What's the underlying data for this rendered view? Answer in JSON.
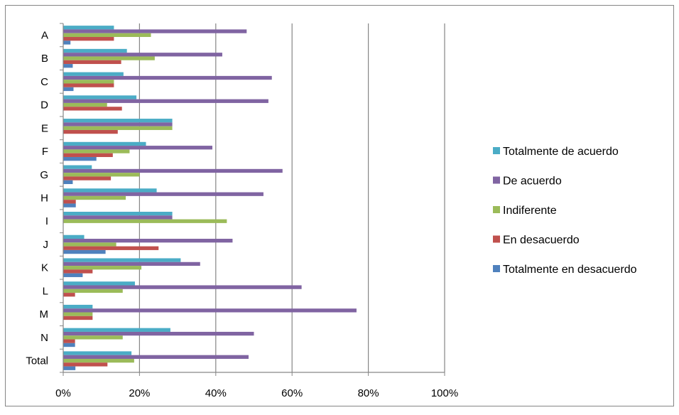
{
  "chart_data": {
    "type": "bar",
    "orientation": "horizontal",
    "categories": [
      "A",
      "B",
      "C",
      "D",
      "E",
      "F",
      "G",
      "H",
      "I",
      "J",
      "K",
      "L",
      "M",
      "N",
      "Total"
    ],
    "x_ticks": [
      "0%",
      "20%",
      "40%",
      "60%",
      "80%",
      "100%"
    ],
    "xlim": [
      0,
      100
    ],
    "grid": "vertical",
    "legend_position": "right",
    "series": [
      {
        "name": "Totalmente de acuerdo",
        "color": "#4BACC6",
        "values": [
          13.3,
          16.7,
          15.8,
          19.2,
          28.6,
          21.7,
          7.5,
          24.5,
          28.6,
          5.5,
          30.8,
          18.8,
          7.7,
          28.1,
          17.9
        ]
      },
      {
        "name": "De acuerdo",
        "color": "#8064A2",
        "values": [
          48.1,
          41.7,
          54.7,
          53.8,
          28.6,
          39.1,
          57.5,
          52.5,
          28.6,
          44.4,
          35.9,
          62.5,
          76.9,
          50.0,
          48.6
        ]
      },
      {
        "name": "Indiferente",
        "color": "#9BBB59",
        "values": [
          23.0,
          24.0,
          13.3,
          11.5,
          28.6,
          17.4,
          20.0,
          16.4,
          42.9,
          13.9,
          20.5,
          15.6,
          7.7,
          15.6,
          18.6
        ]
      },
      {
        "name": "En desacuerdo",
        "color": "#C0504D",
        "values": [
          13.3,
          15.2,
          13.3,
          15.4,
          14.3,
          13.0,
          12.5,
          3.3,
          0,
          25.0,
          7.7,
          3.1,
          7.7,
          3.1,
          11.6
        ]
      },
      {
        "name": "Totalmente en desacuerdo",
        "color": "#4F81BD",
        "values": [
          1.9,
          2.5,
          2.7,
          0,
          0,
          8.7,
          2.5,
          3.3,
          0,
          11.1,
          5.1,
          0,
          0,
          3.1,
          3.2
        ]
      }
    ]
  }
}
